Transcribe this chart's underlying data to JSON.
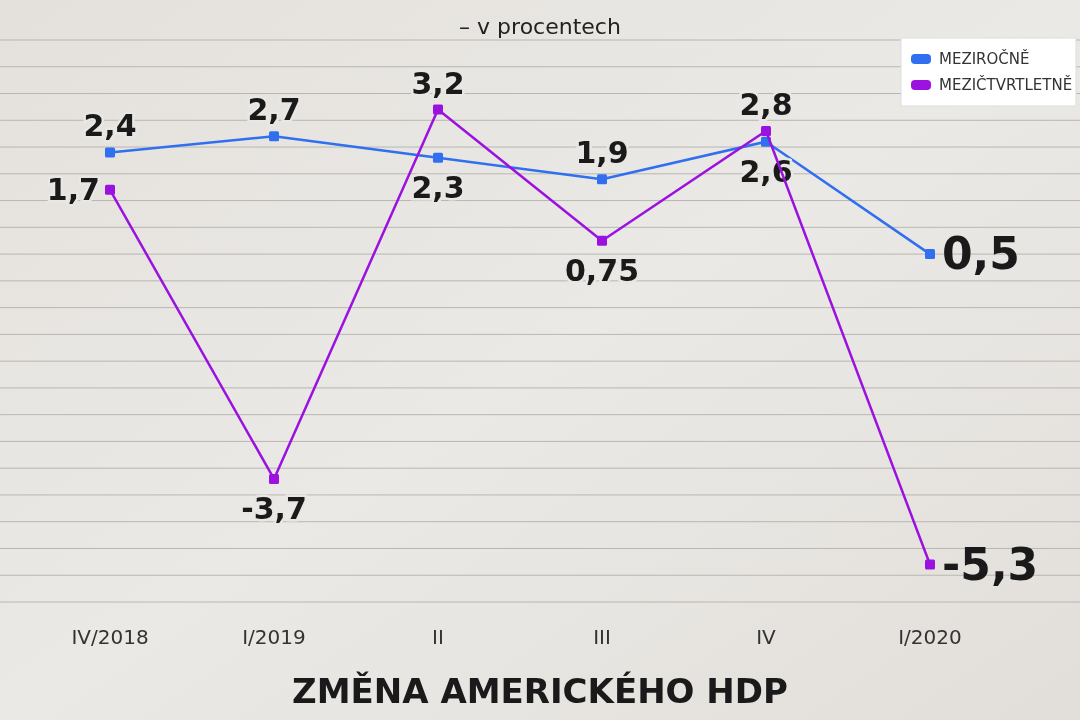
{
  "chart_data": {
    "type": "line",
    "title": "ZMĚNA AMERICKÉHO HDP",
    "subtitle": "– v procentech",
    "categories": [
      "IV/2018",
      "I/2019",
      "II",
      "III",
      "IV",
      "I/2020"
    ],
    "series": [
      {
        "name": "MEZIROČNĚ",
        "color": "#2f6ff0",
        "values": [
          2.4,
          2.7,
          2.3,
          1.9,
          2.6,
          0.5
        ],
        "value_labels": [
          "2,4",
          "2,7",
          "2,3",
          "1,9",
          "2,6",
          "0,5"
        ]
      },
      {
        "name": "MEZIČTVRTLETNĚ",
        "color": "#9b12e0",
        "values": [
          1.7,
          -3.7,
          3.2,
          0.75,
          2.8,
          -5.3
        ],
        "value_labels": [
          "1,7",
          "-3,7",
          "3,2",
          "0,75",
          "2,8",
          "-5,3"
        ]
      }
    ],
    "ylim": [
      -6,
      4.5
    ],
    "yticks": [
      {
        "value": -6,
        "label": null
      },
      {
        "value": -5.5,
        "label": null
      },
      {
        "value": -5,
        "label": null
      },
      {
        "value": -4.5,
        "label": null
      },
      {
        "value": -4,
        "label": null
      },
      {
        "value": -3.5,
        "label": null
      },
      {
        "value": -3,
        "label": null
      },
      {
        "value": -2.5,
        "label": null
      },
      {
        "value": -2,
        "label": null
      },
      {
        "value": -1.5,
        "label": null
      },
      {
        "value": -1,
        "label": null
      },
      {
        "value": -0.5,
        "label": null
      },
      {
        "value": 0,
        "label": null
      },
      {
        "value": 0.5,
        "label": null
      },
      {
        "value": 1,
        "label": null
      },
      {
        "value": 1.5,
        "label": null
      },
      {
        "value": 2,
        "label": null
      },
      {
        "value": 2.5,
        "label": null
      },
      {
        "value": 3,
        "label": null
      },
      {
        "value": 3.5,
        "label": null
      },
      {
        "value": 4,
        "label": null
      },
      {
        "value": 4.5,
        "label": null
      }
    ],
    "tick_labels": "x",
    "grid": "y",
    "legend": "top right",
    "marker": "square",
    "line_style": "solid"
  }
}
